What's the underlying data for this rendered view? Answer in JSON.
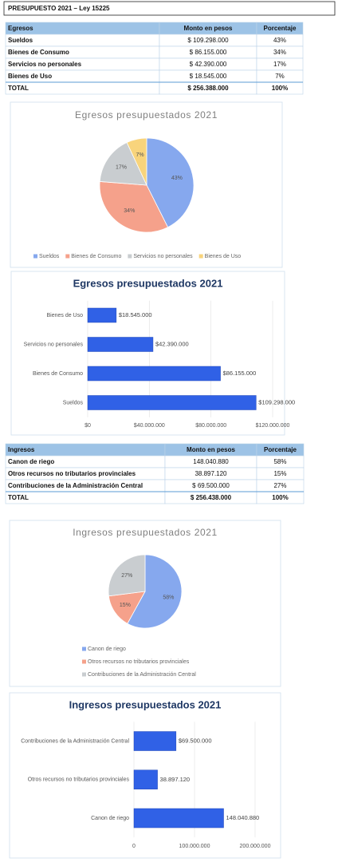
{
  "title": "PRESUPUESTO 2021 – Ley 15225",
  "tables": [
    {
      "header": [
        "Egresos",
        "Monto en pesos",
        "Porcentaje"
      ],
      "rows": [
        [
          "Sueldos",
          "$ 109.298.000",
          "43%"
        ],
        [
          "Bienes de Consumo",
          "$ 86.155.000",
          "34%"
        ],
        [
          "Servicios no personales",
          "$ 42.390.000",
          "17%"
        ],
        [
          "Bienes de Uso",
          "$ 18.545.000",
          "7%"
        ],
        [
          "TOTAL",
          "$ 256.388.000",
          "100%"
        ]
      ]
    },
    {
      "header": [
        "Ingresos",
        "Monto en pesos",
        "Porcentaje"
      ],
      "rows": [
        [
          "Canon de riego",
          "148.040.880",
          "58%"
        ],
        [
          "Otros recursos no tributarios provinciales",
          "38.897.120",
          "15%"
        ],
        [
          "Contribuciones de la Administración Central",
          "$ 69.500.000",
          "27%"
        ],
        [
          "TOTAL",
          "$ 256.438.000",
          "100%"
        ]
      ]
    }
  ],
  "chart_data": [
    {
      "type": "pie",
      "title": "Egresos presupuestados 2021",
      "categories": [
        "Sueldos",
        "Bienes de Consumo",
        "Servicios no personales",
        "Bienes de Uso"
      ],
      "values": [
        43,
        34,
        17,
        7
      ],
      "value_labels": [
        "43%",
        "34%",
        "17%",
        "7%"
      ],
      "colors": [
        "#86a8ee",
        "#f5a18b",
        "#c9cdd0",
        "#f8d47c"
      ],
      "legend": "bottom"
    },
    {
      "type": "barh",
      "title": "Egresos presupuestados 2021",
      "categories": [
        "Sueldos",
        "Bienes de Consumo",
        "Servicios no personales",
        "Bienes de Uso"
      ],
      "values": [
        109298000,
        86155000,
        42390000,
        18545000
      ],
      "value_labels": [
        "$109.298.000",
        "$86.155.000",
        "$42.390.000",
        "$18.545.000"
      ],
      "color": "#3061e6",
      "xlim": [
        0,
        120000000
      ],
      "xticks": [
        {
          "value": 0,
          "label": "$0"
        },
        {
          "value": 40000000,
          "label": "$40.000.000"
        },
        {
          "value": 80000000,
          "label": "$80.000.000"
        },
        {
          "value": 120000000,
          "label": "$120.000.000"
        }
      ],
      "grid": true
    },
    {
      "type": "pie",
      "title": "Ingresos presupuestados 2021",
      "categories": [
        "Canon de riego",
        "Otros recursos no tributarios provinciales",
        "Contribuciones de la Administración Central"
      ],
      "values": [
        58,
        15,
        27
      ],
      "value_labels": [
        "58%",
        "15%",
        "27%"
      ],
      "colors": [
        "#86a8ee",
        "#f5a18b",
        "#c9cdd0"
      ],
      "legend": "bottom"
    },
    {
      "type": "barh",
      "title": "Ingresos presupuestados 2021",
      "categories": [
        "Canon de riego",
        "Otros recursos no tributarios provinciales",
        "Contribuciones de la Administración Central"
      ],
      "values": [
        148040880,
        38897120,
        69500000
      ],
      "value_labels": [
        "148.040.880",
        "38.897.120",
        "$69.500.000"
      ],
      "color": "#3061e6",
      "xlim": [
        0,
        200000000
      ],
      "xticks": [
        0,
        {
          "value": 100000000,
          "label": "100.000.000"
        },
        {
          "value": 200000000,
          "label": "200.000.000"
        }
      ],
      "grid": true
    }
  ]
}
